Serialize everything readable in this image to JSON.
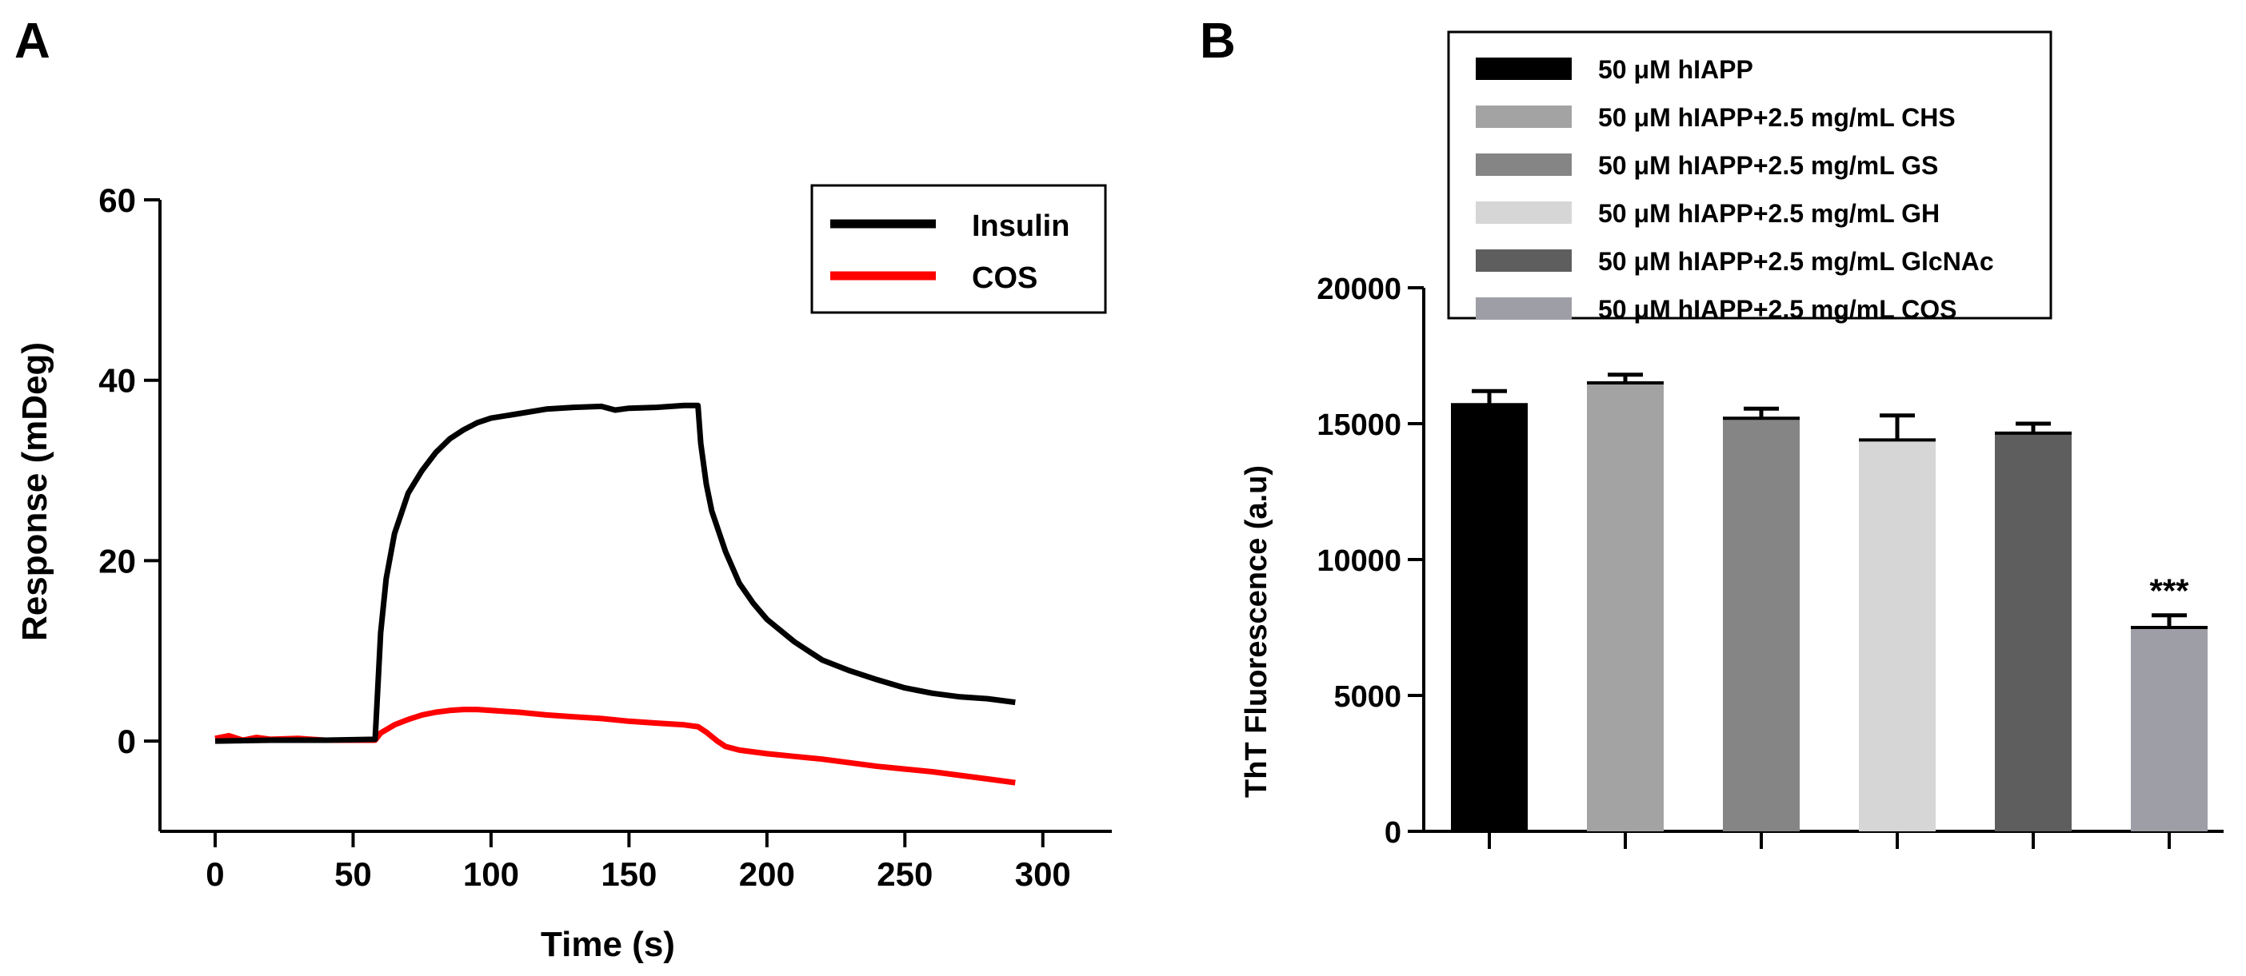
{
  "panels": {
    "a_label": "A",
    "b_label": "B"
  },
  "chart_data": [
    {
      "type": "line",
      "panel": "A",
      "title": "",
      "xlabel": "Time (s)",
      "ylabel": "Response (mDeg)",
      "xlim": [
        -20,
        325
      ],
      "ylim": [
        -10,
        60
      ],
      "xticks": [
        0,
        50,
        100,
        150,
        200,
        250,
        300
      ],
      "yticks": [
        0,
        20,
        40,
        60
      ],
      "grid": false,
      "legend": "top-right",
      "series": [
        {
          "name": "Insulin",
          "color": "#000000",
          "x": [
            0,
            20,
            40,
            58,
            60,
            62,
            65,
            70,
            75,
            80,
            85,
            90,
            95,
            100,
            110,
            120,
            130,
            140,
            145,
            150,
            160,
            170,
            175,
            176,
            178,
            180,
            185,
            190,
            195,
            200,
            210,
            220,
            230,
            240,
            250,
            260,
            270,
            280,
            290
          ],
          "y": [
            0,
            0.1,
            0.1,
            0.2,
            12,
            18,
            23,
            27.5,
            30,
            32,
            33.5,
            34.5,
            35.3,
            35.8,
            36.3,
            36.8,
            37,
            37.1,
            36.7,
            36.9,
            37,
            37.2,
            37.2,
            33,
            28.5,
            25.5,
            21,
            17.5,
            15.3,
            13.5,
            11,
            9,
            7.8,
            6.8,
            5.9,
            5.3,
            4.9,
            4.7,
            4.3
          ]
        },
        {
          "name": "COS",
          "color": "#ff0000",
          "x": [
            0,
            5,
            10,
            15,
            20,
            30,
            40,
            50,
            58,
            60,
            65,
            70,
            75,
            80,
            85,
            90,
            95,
            100,
            110,
            120,
            130,
            140,
            150,
            160,
            170,
            175,
            178,
            182,
            185,
            190,
            200,
            210,
            220,
            230,
            240,
            250,
            260,
            270,
            280,
            290
          ],
          "y": [
            0.3,
            0.6,
            0.1,
            0.4,
            0.2,
            0.3,
            0.1,
            0.1,
            0.1,
            0.9,
            1.8,
            2.4,
            2.9,
            3.2,
            3.4,
            3.5,
            3.5,
            3.4,
            3.2,
            2.9,
            2.7,
            2.5,
            2.2,
            2.0,
            1.8,
            1.6,
            1.0,
            0.0,
            -0.6,
            -1.0,
            -1.4,
            -1.7,
            -2.0,
            -2.4,
            -2.8,
            -3.1,
            -3.4,
            -3.8,
            -4.2,
            -4.6
          ]
        }
      ]
    },
    {
      "type": "bar",
      "panel": "B",
      "title": "",
      "xlabel": "",
      "ylabel": "ThT Fluorescence (a.u)",
      "ylim": [
        0,
        20000
      ],
      "yticks": [
        0,
        5000,
        10000,
        15000,
        20000
      ],
      "grid": false,
      "legend": "top",
      "series": [
        {
          "name": "50 μM hIAPP",
          "value": 15700,
          "error": 500,
          "color": "#000000",
          "annotation": ""
        },
        {
          "name": "50 μM hIAPP+2.5 mg/mL CHS",
          "value": 16500,
          "error": 300,
          "color": "#a3a3a3",
          "annotation": ""
        },
        {
          "name": "50 μM hIAPP+2.5 mg/mL GS",
          "value": 15200,
          "error": 350,
          "color": "#858585",
          "annotation": ""
        },
        {
          "name": "50 μM hIAPP+2.5 mg/mL GH",
          "value": 14400,
          "error": 900,
          "color": "#d6d6d6",
          "annotation": ""
        },
        {
          "name": "50 μM hIAPP+2.5 mg/mL GlcNAc",
          "value": 14650,
          "error": 350,
          "color": "#5e5e5e",
          "annotation": ""
        },
        {
          "name": "50 μM hIAPP+2.5 mg/mL COS",
          "value": 7500,
          "error": 450,
          "color": "#9e9ea6",
          "annotation": "***"
        }
      ]
    }
  ]
}
